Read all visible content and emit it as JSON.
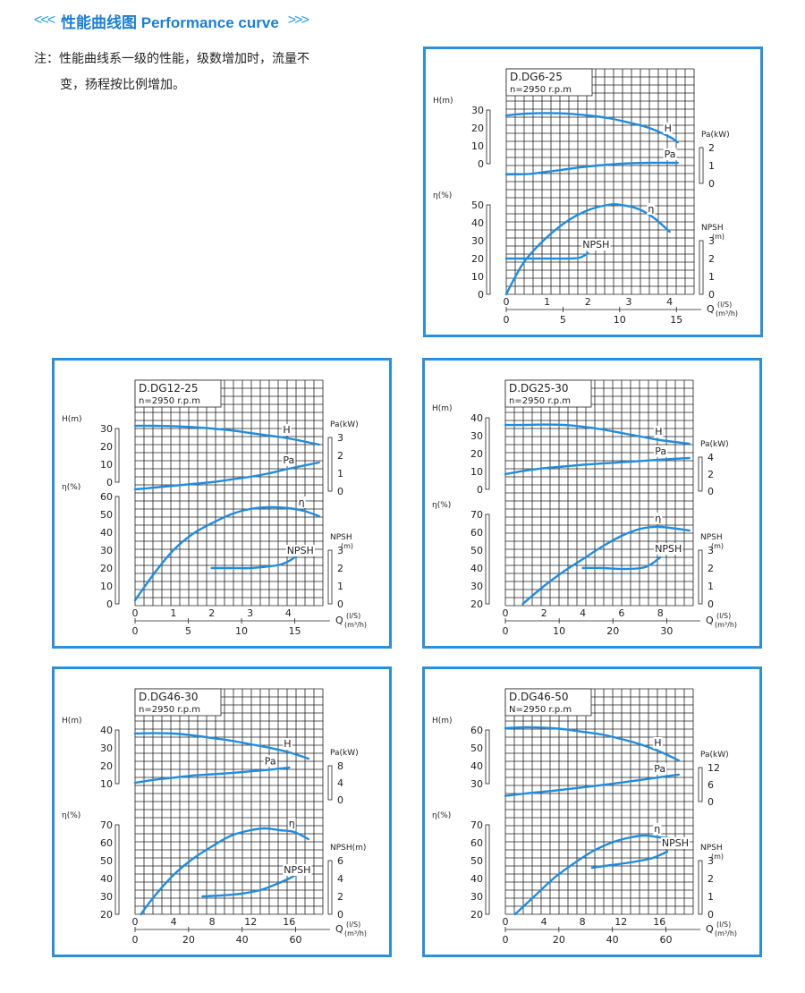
{
  "header": {
    "left_arrows": "<<<",
    "title": "性能曲线图 Performance curve",
    "right_arrows": ">>>"
  },
  "note": {
    "line1": "注：性能曲线系一级的性能，级数增加时，流量不",
    "line2": "变，扬程按比例增加。"
  },
  "colors": {
    "curve": "#1f8ce0",
    "frame": "#2b8fe0",
    "grid": "#222222"
  },
  "chart_data": [
    {
      "type": "line",
      "model": "D.DG6-25",
      "speed": "n=2950 r.p.m",
      "q_ls_ticks": [
        "0",
        "1",
        "2",
        "3",
        "4"
      ],
      "q_m3h_ticks": [
        "0",
        "5",
        "10",
        "15"
      ],
      "q_label": "Q",
      "q_units": [
        "(l/S)",
        "(m³/h)"
      ],
      "h_label": "H(m)",
      "h_ticks": [
        "30",
        "20",
        "10",
        "0"
      ],
      "eta_label": "η(%)",
      "eta_ticks": [
        "50",
        "40",
        "30",
        "20",
        "10",
        "0"
      ],
      "pa_label": "Pa(kW)",
      "pa_ticks": [
        "2",
        "1",
        "0"
      ],
      "npsh_label": "NPSH",
      "npsh_unit": "(m)",
      "npsh_ticks": [
        "3",
        "2",
        "1",
        "0"
      ],
      "series": [
        {
          "name": "H",
          "x": [
            0,
            0.5,
            1,
            1.5,
            2,
            2.5,
            3,
            3.5,
            4,
            4.2
          ],
          "y": [
            27,
            28,
            28.3,
            28,
            27,
            25.5,
            23,
            20,
            15,
            12
          ]
        },
        {
          "name": "Pa",
          "x": [
            0,
            0.5,
            1,
            1.5,
            2,
            2.5,
            3,
            3.5,
            4,
            4.2
          ],
          "y": [
            0.5,
            0.52,
            0.65,
            0.8,
            0.95,
            1.05,
            1.12,
            1.15,
            1.15,
            1.15
          ]
        },
        {
          "name": "η",
          "x": [
            0,
            0.25,
            0.5,
            1,
            1.5,
            2,
            2.5,
            2.8,
            3.2,
            3.6,
            4
          ],
          "y": [
            0,
            11,
            20,
            32,
            41,
            47,
            50,
            50,
            48,
            43,
            35
          ]
        },
        {
          "name": "NPSH",
          "x": [
            0,
            0.5,
            1,
            1.5,
            1.8,
            2
          ],
          "y": [
            2,
            2,
            2,
            2,
            2.05,
            2.3
          ]
        }
      ]
    },
    {
      "type": "line",
      "model": "D.DG12-25",
      "speed": "n=2950 r.p.m",
      "q_ls_ticks": [
        "0",
        "1",
        "2",
        "3",
        "4"
      ],
      "q_m3h_ticks": [
        "0",
        "5",
        "10",
        "15"
      ],
      "q_label": "Q",
      "q_units": [
        "(l/S)",
        "(m³/h)"
      ],
      "h_label": "H(m)",
      "h_ticks": [
        "30",
        "20",
        "10",
        "0"
      ],
      "eta_label": "η(%)",
      "eta_ticks": [
        "60",
        "50",
        "40",
        "30",
        "20",
        "10",
        "0"
      ],
      "pa_label": "Pa(kW)",
      "pa_ticks": [
        "3",
        "2",
        "1",
        "0"
      ],
      "npsh_label": "NPSH",
      "npsh_unit": "(m)",
      "npsh_ticks": [
        "3",
        "2",
        "1",
        "0"
      ],
      "series": [
        {
          "name": "H",
          "x": [
            0,
            0.5,
            1,
            1.5,
            2,
            2.5,
            3,
            3.5,
            4,
            4.8
          ],
          "y": [
            31.5,
            31.5,
            31.3,
            30.8,
            30,
            29,
            27.5,
            26,
            24.5,
            21
          ]
        },
        {
          "name": "Pa",
          "x": [
            0,
            0.5,
            1,
            1.5,
            2,
            2.5,
            3,
            3.5,
            4,
            4.8
          ],
          "y": [
            0.1,
            0.2,
            0.3,
            0.4,
            0.5,
            0.65,
            0.8,
            1,
            1.25,
            1.6
          ]
        },
        {
          "name": "η",
          "x": [
            0,
            0.5,
            1,
            1.5,
            2,
            2.5,
            3,
            3.5,
            4,
            4.4,
            4.8
          ],
          "y": [
            2,
            17,
            30,
            39,
            45,
            50,
            53,
            54,
            53.5,
            52,
            49
          ]
        },
        {
          "name": "NPSH",
          "x": [
            2,
            2.5,
            3,
            3.5,
            3.8,
            4.1,
            4.3
          ],
          "y": [
            2,
            2,
            2,
            2.1,
            2.2,
            2.5,
            2.9
          ]
        }
      ]
    },
    {
      "type": "line",
      "model": "D.DG25-30",
      "speed": "n=2950 r.p.m",
      "q_ls_ticks": [
        "0",
        "2",
        "4",
        "6",
        "8"
      ],
      "q_m3h_ticks": [
        "0",
        "10",
        "20",
        "30"
      ],
      "q_label": "Q",
      "q_units": [
        "(l/S)",
        "(m³/h)"
      ],
      "h_label": "H(m)",
      "h_ticks": [
        "40",
        "30",
        "20",
        "10",
        "0"
      ],
      "eta_label": "η(%)",
      "eta_ticks": [
        "70",
        "60",
        "50",
        "40",
        "30",
        "20"
      ],
      "pa_label": "Pa(kW)",
      "pa_ticks": [
        "4",
        "2",
        "0"
      ],
      "npsh_label": "NPSH",
      "npsh_unit": "(m)",
      "npsh_ticks": [
        "3",
        "2",
        "1",
        "0"
      ],
      "series": [
        {
          "name": "H",
          "x": [
            0,
            1,
            2,
            3,
            4,
            5,
            6,
            7,
            8,
            9.5
          ],
          "y": [
            36,
            36,
            36.2,
            36,
            35,
            33.5,
            31.5,
            29.5,
            27.5,
            25.5
          ]
        },
        {
          "name": "Pa",
          "x": [
            0,
            1,
            2,
            3,
            4,
            5,
            6,
            7,
            8,
            9.5
          ],
          "y": [
            2,
            2.4,
            2.7,
            2.9,
            3.1,
            3.25,
            3.4,
            3.55,
            3.7,
            3.9
          ]
        },
        {
          "name": "η",
          "x": [
            0.9,
            2,
            3,
            4,
            5,
            6,
            7,
            8,
            9.5
          ],
          "y": [
            20,
            30,
            38,
            45,
            52,
            58,
            62,
            63,
            61
          ]
        },
        {
          "name": "NPSH",
          "x": [
            4,
            5,
            6,
            7,
            7.5,
            8
          ],
          "y": [
            2,
            2,
            1.95,
            2,
            2.2,
            2.6
          ]
        }
      ]
    },
    {
      "type": "line",
      "model": "D.DG46-30",
      "speed": "n=2950 r.p.m",
      "q_ls_ticks": [
        "0",
        "4",
        "8",
        "12",
        "16"
      ],
      "q_m3h_ticks": [
        "0",
        "20",
        "40",
        "60"
      ],
      "q_label": "Q",
      "q_units": [
        "(l/S)",
        "(m³/h)"
      ],
      "h_label": "H(m)",
      "h_ticks": [
        "40",
        "30",
        "20",
        "10"
      ],
      "eta_label": "η(%)",
      "eta_ticks": [
        "70",
        "60",
        "50",
        "40",
        "30",
        "20"
      ],
      "pa_label": "Pa(kW)",
      "pa_ticks": [
        "8",
        "4",
        "0"
      ],
      "npsh_label": "NPSH(m)",
      "npsh_unit": "",
      "npsh_ticks": [
        "6",
        "4",
        "2",
        "0"
      ],
      "series": [
        {
          "name": "H",
          "x": [
            0,
            2,
            4,
            6,
            8,
            10,
            12,
            14,
            16,
            18
          ],
          "y": [
            38,
            38.2,
            38,
            37,
            35.5,
            34,
            32,
            30,
            27.5,
            24
          ]
        },
        {
          "name": "Pa",
          "x": [
            0,
            2,
            4,
            6,
            8,
            10,
            12,
            14,
            16
          ],
          "y": [
            4,
            4.7,
            5.2,
            5.7,
            6,
            6.3,
            6.7,
            7.1,
            7.6
          ]
        },
        {
          "name": "η",
          "x": [
            0.6,
            2,
            4,
            6,
            8,
            10,
            12,
            13.5,
            15,
            16.5,
            18
          ],
          "y": [
            20,
            30,
            42,
            51,
            58,
            64,
            67,
            68,
            67,
            66,
            62
          ]
        },
        {
          "name": "NPSH",
          "x": [
            7,
            9,
            11,
            13,
            14.5,
            16,
            17
          ],
          "y": [
            2,
            2.1,
            2.3,
            2.7,
            3.3,
            4,
            4.6
          ]
        }
      ]
    },
    {
      "type": "line",
      "model": "D.DG46-50",
      "speed": "N=2950 r.p.m",
      "q_ls_ticks": [
        "0",
        "4",
        "8",
        "12",
        "16"
      ],
      "q_m3h_ticks": [
        "0",
        "20",
        "40",
        "60"
      ],
      "q_label": "Q",
      "q_units": [
        "(l/S)",
        "(m³/h)"
      ],
      "h_label": "H(m)",
      "h_ticks": [
        "60",
        "50",
        "40",
        "30"
      ],
      "eta_label": "η(%)",
      "eta_ticks": [
        "70",
        "60",
        "50",
        "40",
        "30",
        "20"
      ],
      "pa_label": "Pa(kW)",
      "pa_ticks": [
        "12",
        "6",
        "0"
      ],
      "npsh_label": "NPSH",
      "npsh_unit": "(m)",
      "npsh_ticks": [
        "3",
        "2",
        "1",
        "0"
      ],
      "series": [
        {
          "name": "H",
          "x": [
            0,
            2,
            4,
            6,
            8,
            10,
            12,
            14,
            16,
            18
          ],
          "y": [
            61,
            61.5,
            61.3,
            60.5,
            59,
            57.5,
            55,
            52,
            48,
            43
          ]
        },
        {
          "name": "Pa",
          "x": [
            0,
            2,
            4,
            6,
            8,
            10,
            12,
            14,
            16,
            18
          ],
          "y": [
            2,
            2.8,
            3.5,
            4.2,
            5,
            5.8,
            6.7,
            7.6,
            8.6,
            9.5
          ]
        },
        {
          "name": "η",
          "x": [
            1,
            3,
            5,
            7,
            9,
            11,
            13,
            14.5,
            16,
            17
          ],
          "y": [
            20,
            30,
            40,
            48,
            55,
            60,
            63,
            64,
            63,
            62.5
          ]
        },
        {
          "name": "NPSH",
          "x": [
            9,
            11,
            13,
            15,
            16,
            16.8
          ],
          "y": [
            2.6,
            2.75,
            2.9,
            3.1,
            3.3,
            3.5
          ]
        }
      ]
    }
  ]
}
